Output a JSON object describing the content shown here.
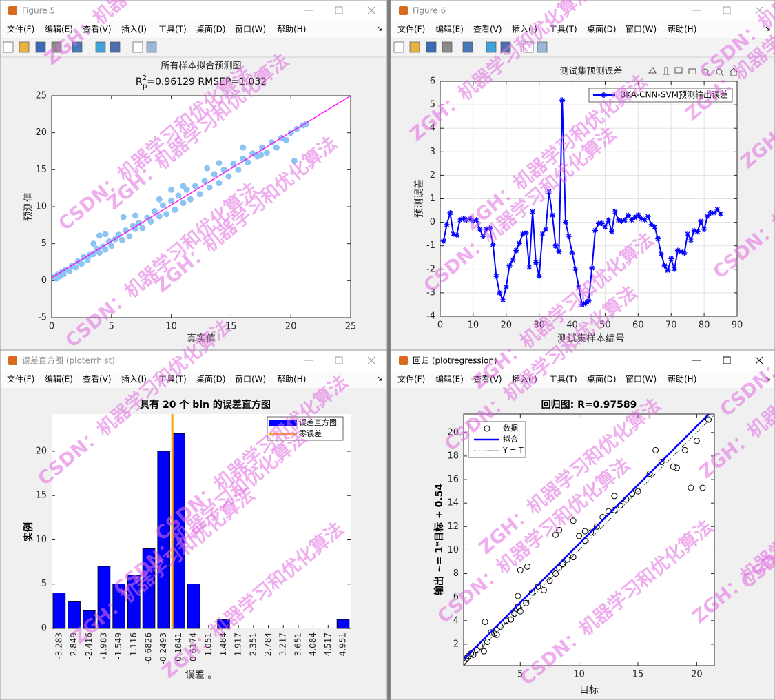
{
  "watermarks": [
    "ZGH：机器学习和优化算法",
    "CSDN：机器学习和优化算法"
  ],
  "menu": [
    "文件(F)",
    "编辑(E)",
    "查看(V)",
    "插入(I)",
    "工具(T)",
    "桌面(D)",
    "窗口(W)",
    "帮助(H)"
  ],
  "windows": [
    {
      "title": "Figure 5"
    },
    {
      "title": "Figure 6"
    },
    {
      "title": "误差直方图 (ploterrhist)"
    },
    {
      "title": "回归 (plotregression)"
    }
  ],
  "chart_data": [
    {
      "type": "scatter",
      "title": "所有样本拟合预测图",
      "subtitle": {
        "base": "R",
        "sup": "2",
        "sub": "p",
        "rest": "=0.96129  RMSEP=1.032"
      },
      "x_label": "真实值",
      "y_label": "预测值",
      "color": "#8cc4f4",
      "x": [
        0.2,
        0.4,
        0.5,
        0.7,
        0.9,
        1.0,
        1.2,
        1.5,
        1.7,
        2.0,
        2.2,
        2.5,
        2.7,
        3.0,
        3.2,
        3.5,
        3.8,
        4.0,
        4.3,
        4.5,
        4.8,
        5.0,
        5.3,
        5.6,
        5.9,
        6.2,
        6.5,
        6.8,
        7.0,
        7.3,
        7.6,
        8.0,
        8.3,
        8.6,
        9.0,
        9.3,
        9.6,
        10.0,
        10.3,
        10.6,
        11.0,
        11.3,
        11.6,
        12.0,
        12.4,
        12.8,
        13.2,
        13.6,
        14.0,
        14.4,
        14.8,
        15.2,
        15.6,
        16.0,
        16.4,
        16.8,
        17.2,
        17.6,
        18.0,
        18.4,
        18.8,
        19.2,
        19.6,
        20.0,
        20.5,
        21.0,
        21.3,
        3.5,
        4.5,
        6.0,
        7.0,
        10.0,
        11.0,
        13.0,
        14.0,
        16.0,
        17.5,
        20.3,
        4.0,
        9.0
      ],
      "y": [
        0.5,
        0.3,
        0.8,
        0.6,
        1.2,
        0.9,
        1.5,
        1.3,
        2.0,
        1.8,
        2.6,
        2.3,
        3.2,
        2.8,
        3.5,
        3.6,
        4.3,
        3.8,
        4.6,
        4.2,
        5.3,
        4.7,
        5.6,
        6.2,
        5.5,
        6.8,
        6.0,
        7.4,
        7.0,
        7.8,
        7.1,
        8.5,
        8.0,
        9.4,
        8.7,
        10.2,
        9.0,
        10.8,
        9.6,
        11.5,
        10.5,
        12.3,
        11.0,
        12.8,
        11.7,
        13.5,
        12.6,
        14.4,
        13.2,
        15.0,
        14.1,
        15.8,
        15.0,
        16.5,
        16.0,
        17.2,
        16.8,
        18.0,
        17.3,
        18.7,
        18.0,
        19.3,
        19.0,
        20.0,
        20.5,
        21.0,
        21.2,
        5.0,
        6.3,
        8.6,
        8.8,
        12.3,
        12.8,
        15.2,
        15.9,
        18.0,
        17.0,
        16.2,
        6.1,
        11.0
      ],
      "line": {
        "x": [
          0,
          25
        ],
        "y": [
          0.4,
          25
        ],
        "color": "#ff00ff"
      },
      "xlim": [
        0,
        25
      ],
      "ylim": [
        -5,
        25
      ],
      "xticks": [
        0,
        5,
        10,
        15,
        20,
        25
      ],
      "yticks": [
        -5,
        0,
        5,
        10,
        15,
        20,
        25
      ]
    },
    {
      "type": "line",
      "title": "测试集预测误差",
      "x_label": "测试集样本编号",
      "y_label": "预测误差",
      "x": [
        1,
        2,
        3,
        4,
        5,
        6,
        7,
        8,
        9,
        10,
        11,
        12,
        13,
        14,
        15,
        16,
        17,
        18,
        19,
        20,
        21,
        22,
        23,
        24,
        25,
        26,
        27,
        28,
        29,
        30,
        31,
        32,
        33,
        34,
        35,
        36,
        37,
        38,
        39,
        40,
        41,
        42,
        43,
        44,
        45,
        46,
        47,
        48,
        49,
        50,
        51,
        52,
        53,
        54,
        55,
        56,
        57,
        58,
        59,
        60,
        61,
        62,
        63,
        64,
        65,
        66,
        67,
        68,
        69,
        70,
        71,
        72,
        73,
        74,
        75,
        76,
        77,
        78,
        79,
        80,
        81,
        82,
        83,
        84,
        85
      ],
      "series": [
        {
          "name": "BKA-CNN-SVM预测输出误差",
          "color": "#0000ff",
          "values": [
            -0.8,
            -0.1,
            0.4,
            -0.5,
            -0.55,
            0.1,
            0.15,
            0.1,
            0.15,
            0.05,
            0.1,
            -0.3,
            -0.6,
            -0.3,
            -0.25,
            -0.95,
            -2.3,
            -3.0,
            -3.3,
            -2.75,
            -1.85,
            -1.6,
            -1.2,
            -0.9,
            -0.5,
            -0.45,
            -1.9,
            0.45,
            -1.7,
            -2.3,
            -0.5,
            -0.3,
            1.3,
            0.3,
            -1.0,
            -1.25,
            5.2,
            0.0,
            -0.6,
            -1.3,
            -2.0,
            -2.75,
            -3.5,
            -3.45,
            -3.35,
            -1.95,
            -0.35,
            -0.05,
            -0.05,
            -0.2,
            0.1,
            -0.4,
            0.45,
            0.1,
            0.05,
            0.1,
            0.3,
            0.1,
            0.2,
            0.3,
            0.15,
            0.1,
            0.25,
            -0.1,
            -0.2,
            -0.7,
            -1.35,
            -1.85,
            -2.05,
            -1.55,
            -2.0,
            -1.2,
            -1.25,
            -1.3,
            -0.5,
            -0.75,
            -0.35,
            -0.4,
            0.05,
            -0.3,
            0.25,
            0.4,
            0.4,
            0.55,
            0.35
          ]
        }
      ],
      "xlim": [
        0,
        90
      ],
      "ylim": [
        -4,
        6
      ],
      "xticks": [
        0,
        10,
        20,
        30,
        40,
        50,
        60,
        70,
        80,
        90
      ],
      "yticks": [
        -4,
        -3,
        -2,
        -1,
        0,
        1,
        2,
        3,
        4,
        5,
        6
      ],
      "grid": true,
      "legend": "upper right"
    },
    {
      "type": "histogram",
      "title": "具有 20 个 bin 的误差直方图",
      "x_label": "误差 。",
      "y_label": "实例",
      "categories": [
        -3.283,
        -2.849,
        -2.416,
        -1.983,
        -1.549,
        -1.116,
        -0.6826,
        -0.2493,
        0.1841,
        0.6174,
        1.051,
        1.484,
        1.917,
        2.351,
        2.784,
        3.217,
        3.651,
        4.084,
        4.517,
        4.951
      ],
      "series": [
        {
          "name": "误差直方图",
          "color": "#0000ff",
          "values": [
            4,
            3,
            2,
            7,
            5,
            6,
            9,
            20,
            22,
            5,
            0,
            1,
            0,
            0,
            0,
            0,
            0,
            0,
            0,
            1
          ]
        }
      ],
      "zero_line": {
        "name": "零误差",
        "value": 0,
        "color": "#ffa500"
      },
      "xlim": [
        -3.5,
        5.17
      ],
      "ylim": [
        0,
        24.2
      ],
      "yticks": [
        0,
        5,
        10,
        15,
        20
      ],
      "legend": "upper right"
    },
    {
      "type": "regression",
      "title": "回归图: R=0.97589",
      "x_label": "目标",
      "y_label": "输出 ~= 1*目标 + 0.54",
      "points": {
        "name": "数据",
        "color": "#000000",
        "x": [
          0.2,
          0.4,
          0.6,
          0.8,
          1.0,
          1.3,
          1.6,
          1.9,
          2.2,
          2.5,
          2.8,
          3.0,
          3.3,
          3.8,
          4.2,
          4.5,
          4.8,
          5.0,
          5.5,
          6.0,
          6.5,
          7.0,
          7.5,
          8.0,
          8.3,
          8.6,
          9.0,
          9.5,
          10.0,
          10.5,
          11.0,
          11.5,
          12.0,
          12.5,
          13.0,
          13.5,
          14.0,
          14.5,
          15.0,
          16.0,
          17.0,
          18.0,
          19.0,
          20.0,
          21.0,
          2.0,
          4.8,
          5.0,
          5.6,
          8.0,
          8.3,
          9.5,
          10.5,
          13.0,
          16.5,
          18.3,
          19.5,
          20.5
        ],
        "y": [
          0.5,
          0.8,
          1.0,
          1.2,
          1.1,
          1.5,
          1.8,
          1.4,
          2.2,
          3.0,
          2.9,
          2.8,
          3.5,
          4.0,
          4.1,
          4.6,
          5.2,
          4.8,
          5.5,
          6.4,
          6.9,
          6.6,
          7.4,
          8.0,
          8.5,
          8.8,
          9.2,
          9.4,
          11.2,
          11.6,
          11.5,
          12.0,
          12.8,
          13.3,
          13.4,
          13.8,
          14.3,
          14.8,
          15.0,
          16.5,
          17.5,
          17.1,
          18.5,
          19.3,
          21.1,
          3.9,
          6.1,
          8.3,
          8.6,
          11.3,
          11.7,
          12.5,
          10.8,
          14.6,
          18.5,
          17.0,
          15.3,
          15.3
        ]
      },
      "fit_line": {
        "name": "拟合",
        "color": "#0000ff",
        "x": [
          0.18,
          21.5
        ],
        "y": [
          0.72,
          22.04
        ]
      },
      "identity_line": {
        "name": "Y = T",
        "color": "#000000",
        "x": [
          0.18,
          21.5
        ],
        "y": [
          0.18,
          21.5
        ]
      },
      "xlim": [
        0.18,
        21.5
      ],
      "ylim": [
        0.18,
        21.57
      ],
      "xticks": [
        5,
        10,
        15,
        20
      ],
      "yticks": [
        2,
        4,
        6,
        8,
        10,
        12,
        14,
        16,
        18,
        20
      ],
      "legend": "upper left"
    }
  ]
}
